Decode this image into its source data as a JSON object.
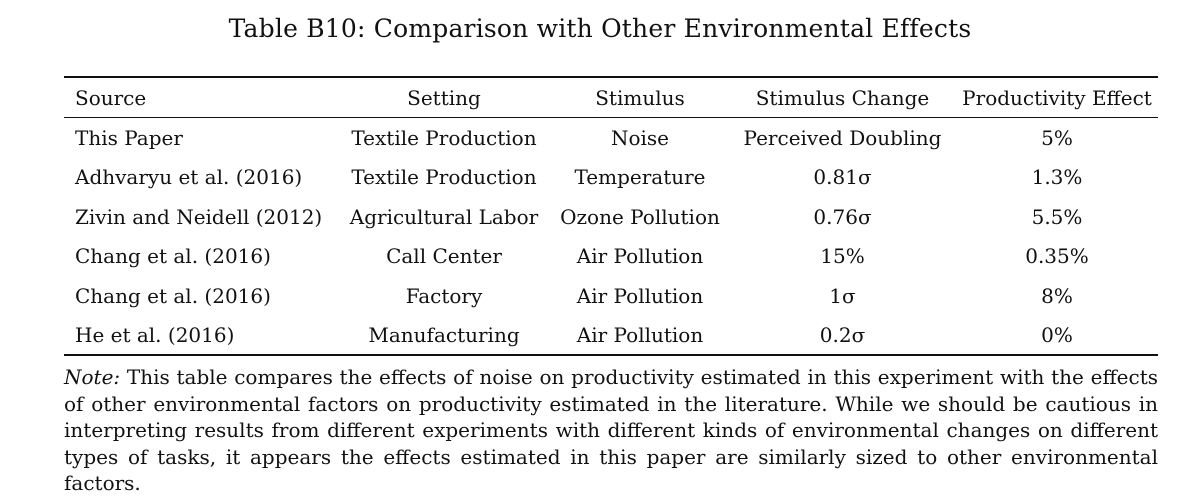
{
  "title": "Table B10: Comparison with Other Environmental Effects",
  "table": {
    "headers": [
      "Source",
      "Setting",
      "Stimulus",
      "Stimulus Change",
      "Productivity Effect"
    ],
    "rows": [
      [
        "This Paper",
        "Textile Production",
        "Noise",
        "Perceived Doubling",
        "5%"
      ],
      [
        "Adhvaryu et al. (2016)",
        "Textile Production",
        "Temperature",
        "0.81σ",
        "1.3%"
      ],
      [
        "Zivin and Neidell (2012)",
        "Agricultural Labor",
        "Ozone Pollution",
        "0.76σ",
        "5.5%"
      ],
      [
        "Chang et al. (2016)",
        "Call Center",
        "Air Pollution",
        "15%",
        "0.35%"
      ],
      [
        "Chang et al. (2016)",
        "Factory",
        "Air Pollution",
        "1σ",
        "8%"
      ],
      [
        "He et al. (2016)",
        "Manufacturing",
        "Air Pollution",
        "0.2σ",
        "0%"
      ]
    ]
  },
  "note": {
    "label": "Note:",
    "text": "This table compares the effects of noise on productivity estimated in this experiment with the effects of other environmental factors on productivity estimated in the literature. While we should be cautious in interpreting results from different experiments with different kinds of environmental changes on different types of tasks, it appears the effects estimated in this paper are similarly sized to other environmental factors."
  }
}
